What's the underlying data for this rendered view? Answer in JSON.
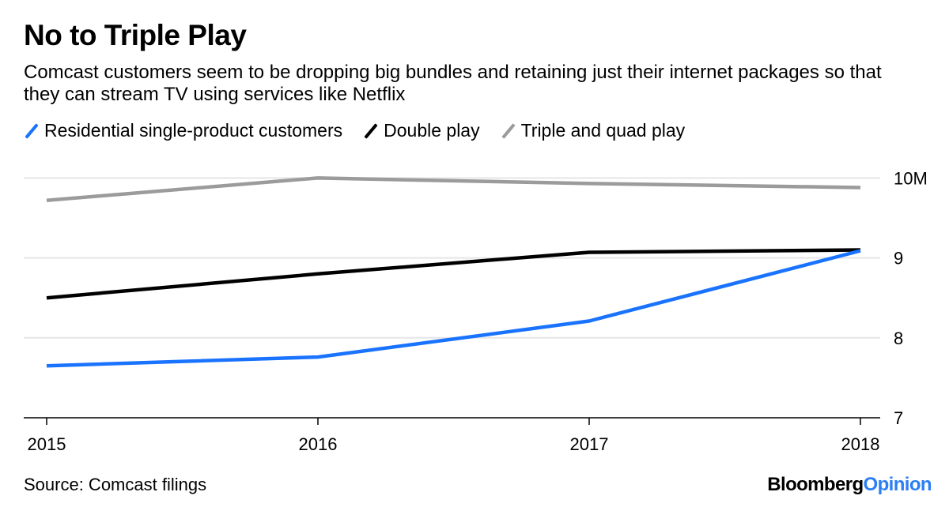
{
  "header": {
    "title": "No to Triple Play",
    "subtitle": "Comcast customers seem to be dropping big bundles and retaining just their internet packages so that they can stream TV using services like Netflix"
  },
  "legend": [
    {
      "label": "Residential single-product customers",
      "color": "#1a73ff"
    },
    {
      "label": "Double play",
      "color": "#000000"
    },
    {
      "label": "Triple and quad play",
      "color": "#9b9b9b"
    }
  ],
  "chart_data": {
    "type": "line",
    "x": [
      "2015",
      "2016",
      "2017",
      "2018"
    ],
    "series": [
      {
        "name": "Triple and quad play",
        "color": "#9b9b9b",
        "values": [
          9.72,
          10.0,
          9.93,
          9.88
        ]
      },
      {
        "name": "Double play",
        "color": "#000000",
        "values": [
          8.5,
          8.8,
          9.07,
          9.1
        ]
      },
      {
        "name": "Residential single-product customers",
        "color": "#1a73ff",
        "values": [
          7.65,
          7.76,
          8.21,
          9.09
        ]
      }
    ],
    "yticks": [
      7,
      8,
      9,
      10
    ],
    "ytick_labels": [
      "7",
      "8",
      "9",
      "10M"
    ],
    "ylim": [
      7,
      10.3
    ],
    "grid": true
  },
  "footer": {
    "source": "Source: Comcast filings",
    "brand_part1": "Bloomberg",
    "brand_part2": "Opinion"
  }
}
